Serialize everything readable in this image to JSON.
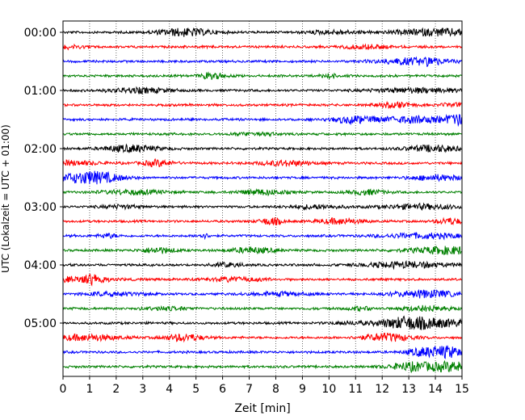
{
  "chart_data": {
    "type": "line",
    "title": "",
    "xlabel": "Zeit  [min]",
    "ylabel": "UTC (Lokalzeit = UTC + 01:00)",
    "xlim": [
      0,
      15
    ],
    "x_ticks": [
      "0",
      "1",
      "2",
      "3",
      "4",
      "5",
      "6",
      "7",
      "8",
      "9",
      "10",
      "11",
      "12",
      "13",
      "14",
      "15"
    ],
    "x_grid": "dotted",
    "y_ticks": [
      "00:00",
      "01:00",
      "02:00",
      "03:00",
      "04:00",
      "05:00"
    ],
    "trace_interval_min": 15,
    "trace_count": 24,
    "trace_colors": [
      "#000000",
      "#ff0000",
      "#0000ff",
      "#008000"
    ],
    "traces": [
      {
        "start": "00:00",
        "color": "#000000"
      },
      {
        "start": "00:15",
        "color": "#ff0000"
      },
      {
        "start": "00:30",
        "color": "#0000ff"
      },
      {
        "start": "00:45",
        "color": "#008000"
      },
      {
        "start": "01:00",
        "color": "#000000"
      },
      {
        "start": "01:15",
        "color": "#ff0000"
      },
      {
        "start": "01:30",
        "color": "#0000ff"
      },
      {
        "start": "01:45",
        "color": "#008000"
      },
      {
        "start": "02:00",
        "color": "#000000"
      },
      {
        "start": "02:15",
        "color": "#ff0000"
      },
      {
        "start": "02:30",
        "color": "#0000ff"
      },
      {
        "start": "02:45",
        "color": "#008000"
      },
      {
        "start": "03:00",
        "color": "#000000"
      },
      {
        "start": "03:15",
        "color": "#ff0000"
      },
      {
        "start": "03:30",
        "color": "#0000ff"
      },
      {
        "start": "03:45",
        "color": "#008000"
      },
      {
        "start": "04:00",
        "color": "#000000"
      },
      {
        "start": "04:15",
        "color": "#ff0000"
      },
      {
        "start": "04:30",
        "color": "#0000ff"
      },
      {
        "start": "04:45",
        "color": "#008000"
      },
      {
        "start": "05:00",
        "color": "#000000"
      },
      {
        "start": "05:15",
        "color": "#ff0000"
      },
      {
        "start": "05:30",
        "color": "#0000ff"
      },
      {
        "start": "05:45",
        "color": "#008000"
      }
    ]
  }
}
